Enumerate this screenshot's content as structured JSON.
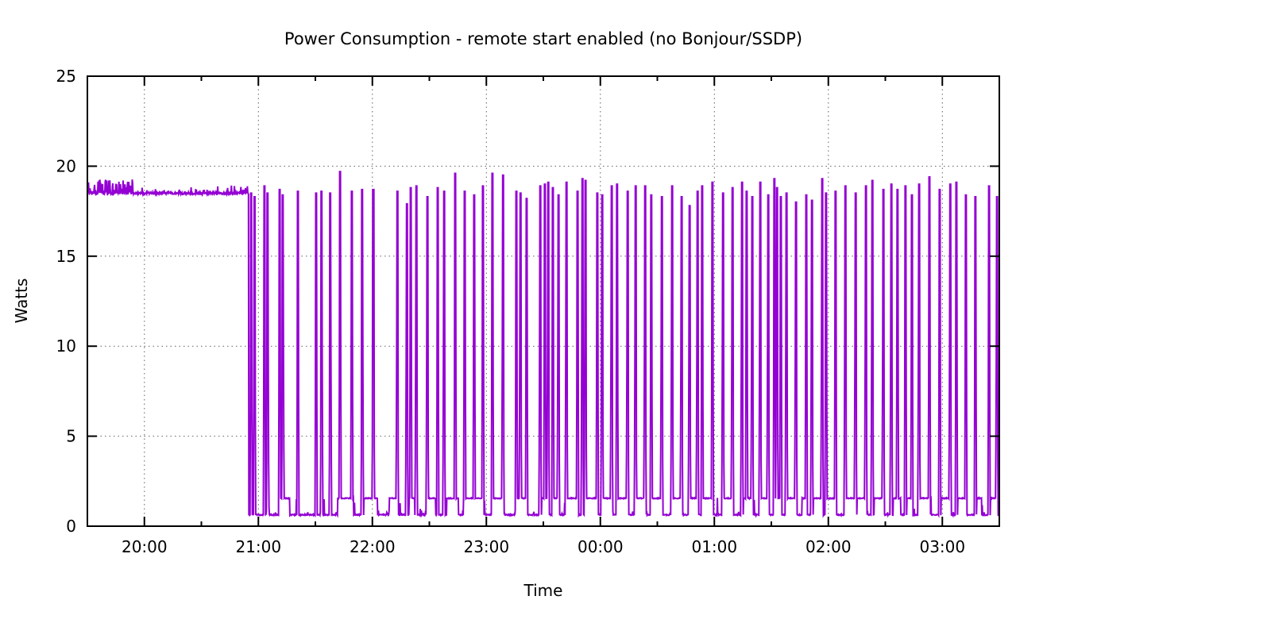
{
  "chart_data": {
    "type": "line",
    "title": "Power Consumption - remote start enabled (no Bonjour/SSDP)",
    "xlabel": "Time",
    "ylabel": "Watts",
    "ylim": [
      0,
      25
    ],
    "y_ticks": [
      {
        "value": 0,
        "label": "0"
      },
      {
        "value": 5,
        "label": "5"
      },
      {
        "value": 10,
        "label": "10"
      },
      {
        "value": 15,
        "label": "15"
      },
      {
        "value": 20,
        "label": "20"
      },
      {
        "value": 25,
        "label": "25"
      }
    ],
    "x_axis": {
      "start_label": "19:30",
      "end_label": "03:30",
      "total_minutes": 480,
      "major_ticks": [
        {
          "minute": 30,
          "label": "20:00"
        },
        {
          "minute": 90,
          "label": "21:00"
        },
        {
          "minute": 150,
          "label": "22:00"
        },
        {
          "minute": 210,
          "label": "23:00"
        },
        {
          "minute": 270,
          "label": "00:00"
        },
        {
          "minute": 330,
          "label": "01:00"
        },
        {
          "minute": 390,
          "label": "02:00"
        },
        {
          "minute": 450,
          "label": "03:00"
        }
      ],
      "minor_ticks_minutes": [
        60,
        120,
        180,
        240,
        300,
        360,
        420
      ]
    },
    "grid": {
      "show": true,
      "style": "dotted",
      "color": "#606060"
    },
    "line_color": "#9400d3",
    "line_width": 2,
    "border_color": "#000000",
    "series": {
      "name": "power-watts",
      "initial_plateau": {
        "start_minute": 0,
        "end_minute": 85.0,
        "watts": 18.5,
        "noise_watts": 0.45,
        "dense_noise_until_minute": 24
      },
      "idle_baseline_watts": 0.62,
      "active_baseline_watts": 1.55,
      "baseline_noise_watts": 0.1,
      "active_plateaus_minutes": [
        [
          101.2,
          106.6
        ],
        [
          131.7,
          140.1
        ],
        [
          145.5,
          152.6
        ],
        [
          158.9,
          163.5
        ],
        [
          169.3,
          172.3
        ],
        [
          179.3,
          183.2
        ],
        [
          189.0,
          195.3
        ],
        [
          197.8,
          207.8
        ],
        [
          213.6,
          218.3
        ],
        [
          226.3,
          230.8
        ],
        [
          239.0,
          242.0
        ],
        [
          245.4,
          247.5
        ],
        [
          252.5,
          257.6
        ],
        [
          262.5,
          268.0
        ],
        [
          271.3,
          275.5
        ],
        [
          279.2,
          283.9
        ],
        [
          289.0,
          293.1
        ],
        [
          297.2,
          301.9
        ],
        [
          308.1,
          312.3
        ],
        [
          317.3,
          320.7
        ],
        [
          324.0,
          328.6
        ],
        [
          335.0,
          339.1
        ],
        [
          345.2,
          349.4
        ],
        [
          354.6,
          358.0
        ],
        [
          362.0,
          364.6
        ],
        [
          368.3,
          372.5
        ],
        [
          376.0,
          378.2
        ],
        [
          382.0,
          386.3
        ],
        [
          389.3,
          393.4
        ],
        [
          399.3,
          403.9
        ],
        [
          405.0,
          409.3
        ],
        [
          414.0,
          418.5
        ],
        [
          424.0,
          428.0
        ],
        [
          431.2,
          433.6
        ],
        [
          438.2,
          442.9
        ],
        [
          449.2,
          453.7
        ],
        [
          458.0,
          462.0
        ],
        [
          468.0,
          470.6
        ],
        [
          475.2,
          478.2
        ]
      ],
      "spikes_minute_peak": [
        [
          86.2,
          18.5
        ],
        [
          88.0,
          18.3
        ],
        [
          93.2,
          18.9
        ],
        [
          94.9,
          18.5
        ],
        [
          101.2,
          18.7
        ],
        [
          102.9,
          18.4
        ],
        [
          110.8,
          18.6
        ],
        [
          120.4,
          18.5
        ],
        [
          123.3,
          18.6
        ],
        [
          127.9,
          18.5
        ],
        [
          133.0,
          19.7
        ],
        [
          139.2,
          18.6
        ],
        [
          144.7,
          18.7
        ],
        [
          150.5,
          18.7
        ],
        [
          163.1,
          18.6
        ],
        [
          168.1,
          17.9
        ],
        [
          170.2,
          18.8
        ],
        [
          173.1,
          18.9
        ],
        [
          178.9,
          18.3
        ],
        [
          184.4,
          18.8
        ],
        [
          187.7,
          18.6
        ],
        [
          193.6,
          19.6
        ],
        [
          198.6,
          18.6
        ],
        [
          203.6,
          18.4
        ],
        [
          208.2,
          18.9
        ],
        [
          213.2,
          19.6
        ],
        [
          218.7,
          19.5
        ],
        [
          225.8,
          18.6
        ],
        [
          227.9,
          18.5
        ],
        [
          231.2,
          18.2
        ],
        [
          238.3,
          18.9
        ],
        [
          240.8,
          19.0
        ],
        [
          242.5,
          19.1
        ],
        [
          245.0,
          18.8
        ],
        [
          247.9,
          18.4
        ],
        [
          252.1,
          19.1
        ],
        [
          258.0,
          18.6
        ],
        [
          260.5,
          19.3
        ],
        [
          262.1,
          19.2
        ],
        [
          268.4,
          18.5
        ],
        [
          270.9,
          18.4
        ],
        [
          275.9,
          18.9
        ],
        [
          278.8,
          19.0
        ],
        [
          284.3,
          18.6
        ],
        [
          288.5,
          18.9
        ],
        [
          293.5,
          18.9
        ],
        [
          296.8,
          18.4
        ],
        [
          302.3,
          18.3
        ],
        [
          307.7,
          18.9
        ],
        [
          312.7,
          18.3
        ],
        [
          316.9,
          17.8
        ],
        [
          321.1,
          18.6
        ],
        [
          323.6,
          18.9
        ],
        [
          329.0,
          19.1
        ],
        [
          334.5,
          18.5
        ],
        [
          339.5,
          18.8
        ],
        [
          344.5,
          19.1
        ],
        [
          347.0,
          18.6
        ],
        [
          349.9,
          18.3
        ],
        [
          354.1,
          19.1
        ],
        [
          358.3,
          18.4
        ],
        [
          361.6,
          19.3
        ],
        [
          362.9,
          18.8
        ],
        [
          365.0,
          18.3
        ],
        [
          367.9,
          18.5
        ],
        [
          372.9,
          18.0
        ],
        [
          378.4,
          18.4
        ],
        [
          381.3,
          18.1
        ],
        [
          386.7,
          19.3
        ],
        [
          388.8,
          18.5
        ],
        [
          393.8,
          18.6
        ],
        [
          398.9,
          18.9
        ],
        [
          404.3,
          18.5
        ],
        [
          409.7,
          18.9
        ],
        [
          413.1,
          19.2
        ],
        [
          418.9,
          18.7
        ],
        [
          423.1,
          19.0
        ],
        [
          426.4,
          18.7
        ],
        [
          430.6,
          18.9
        ],
        [
          434.0,
          18.4
        ],
        [
          437.7,
          19.0
        ],
        [
          443.2,
          19.4
        ],
        [
          448.6,
          18.7
        ],
        [
          454.1,
          19.0
        ],
        [
          457.4,
          19.1
        ],
        [
          462.4,
          18.4
        ],
        [
          467.4,
          18.3
        ],
        [
          474.6,
          18.9
        ],
        [
          478.7,
          18.3
        ]
      ]
    }
  }
}
